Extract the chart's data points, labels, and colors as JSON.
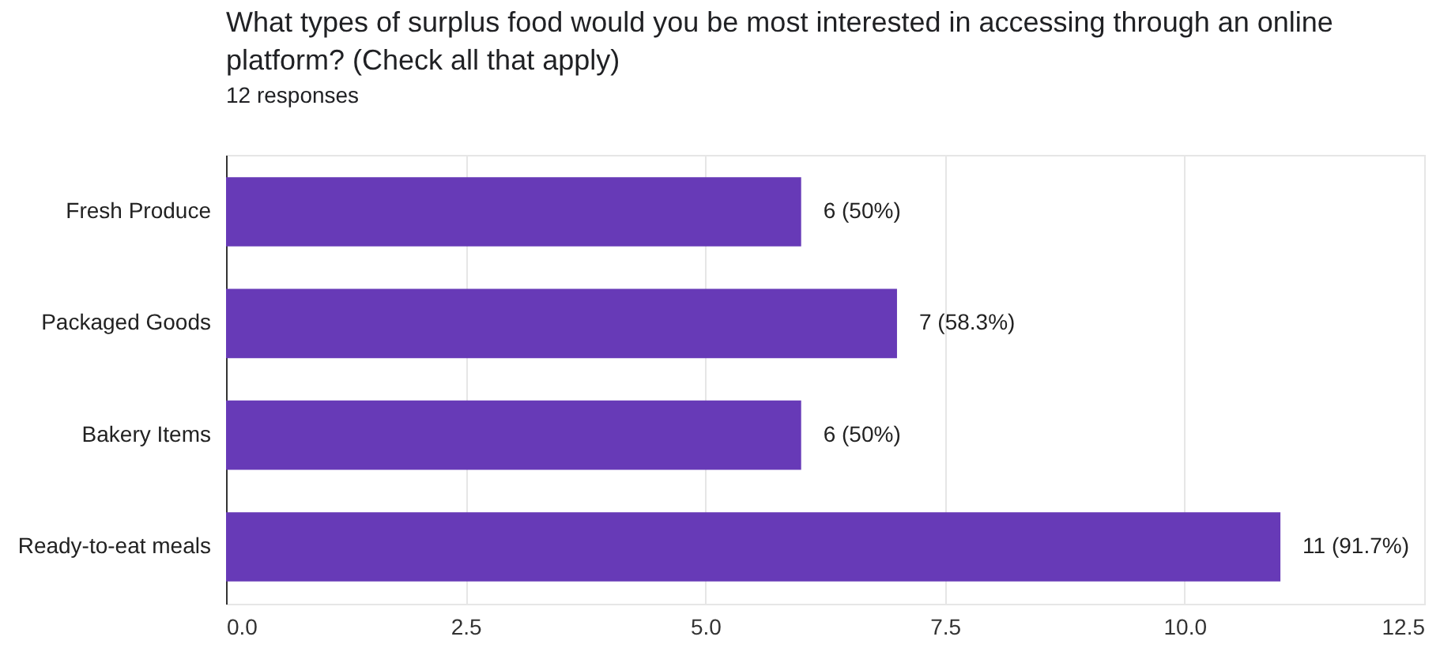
{
  "chart_data": {
    "type": "bar",
    "orientation": "horizontal",
    "title": "What types of surplus food would you be most interested in accessing through an online platform? (Check all that apply)",
    "subtitle": "12 responses",
    "categories": [
      "Fresh Produce",
      "Packaged Goods",
      "Bakery Items",
      "Ready-to-eat meals"
    ],
    "values": [
      6,
      7,
      6,
      11
    ],
    "value_labels": [
      "6 (50%)",
      "7 (58.3%)",
      "6 (50%)",
      "11 (91.7%)"
    ],
    "color": "#673ab7",
    "xlim": [
      0,
      12.5
    ],
    "xticks": [
      {
        "value": 0,
        "label": "0.0"
      },
      2.5,
      {
        "value": 5,
        "label": "5.0"
      },
      7.5,
      {
        "value": 10,
        "label": "10.0"
      },
      12.5
    ],
    "grid": "x"
  }
}
